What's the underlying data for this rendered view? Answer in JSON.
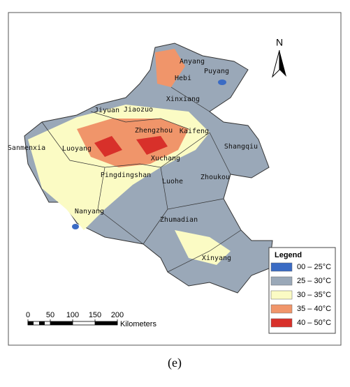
{
  "north_arrow": "N",
  "cities": [
    "Anyang",
    "Puyang",
    "Hebi",
    "Xinxiang",
    "Jiyuan",
    "Jiaozuo",
    "Zhengzhou",
    "Kaifeng",
    "Shangqiu",
    "Sanmenxia",
    "Luoyang",
    "Xuchang",
    "Pingdingshan",
    "Zhoukou",
    "Luohe",
    "Nanyang",
    "Zhumadian",
    "Xinyang"
  ],
  "legend": {
    "title": "Legend",
    "items": [
      {
        "label": "00 – 25°C",
        "color": "#3a6bc4"
      },
      {
        "label": "25 – 30°C",
        "color": "#9aa8b8"
      },
      {
        "label": "30 – 35°C",
        "color": "#fbfbc4"
      },
      {
        "label": "35 – 40°C",
        "color": "#f0956a"
      },
      {
        "label": "40 – 50°C",
        "color": "#d8302a"
      }
    ]
  },
  "scale_bar": {
    "ticks": [
      0,
      50,
      100,
      150,
      200
    ],
    "unit": "Kilometers"
  },
  "caption": "(e)"
}
